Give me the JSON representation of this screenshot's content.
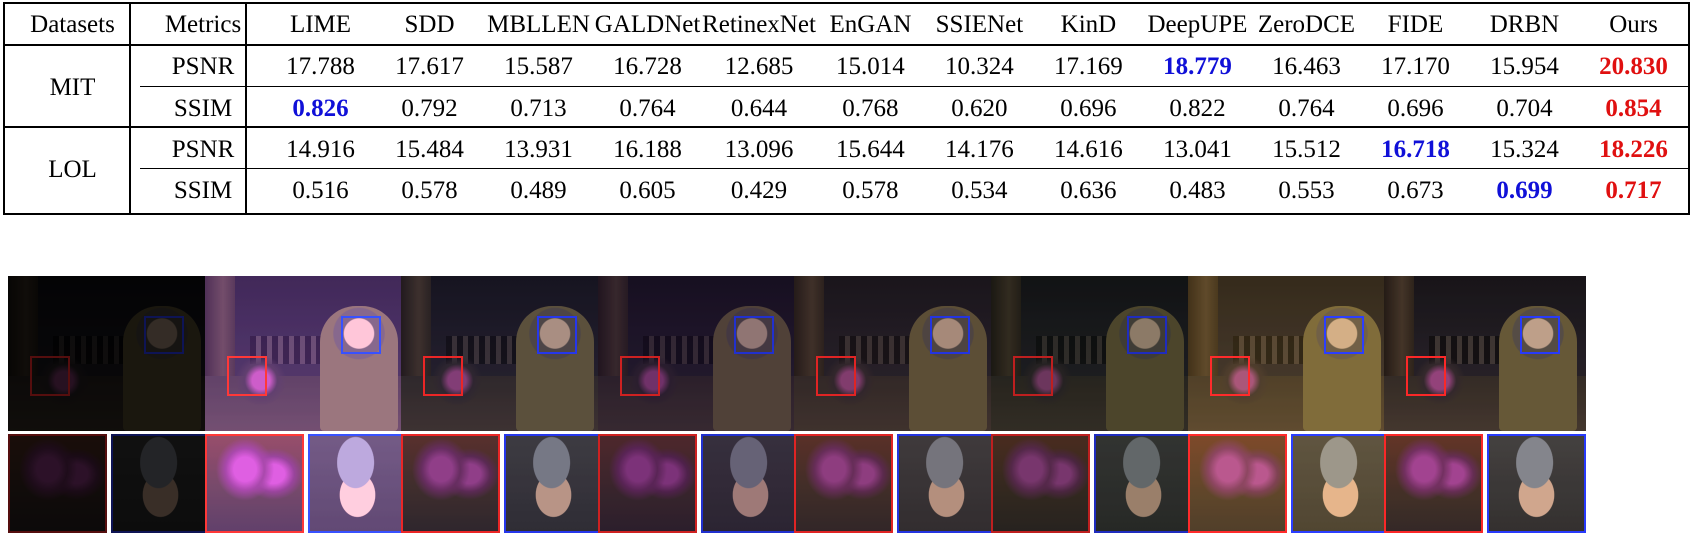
{
  "table": {
    "header": {
      "datasets": "Datasets",
      "metrics": "Metrics",
      "methods": [
        "LIME",
        "SDD",
        "MBLLEN",
        "GALDNet",
        "RetinexNet",
        "EnGAN",
        "SSIENet",
        "KinD",
        "DeepUPE",
        "ZeroDCE",
        "FIDE",
        "DRBN",
        "Ours"
      ]
    },
    "rows": [
      {
        "dataset": "MIT",
        "metric": "PSNR",
        "values": [
          "17.788",
          "17.617",
          "15.587",
          "16.728",
          "12.685",
          "15.014",
          "10.324",
          "17.169",
          "18.779",
          "16.463",
          "17.170",
          "15.954",
          "20.830"
        ],
        "best_index": 12,
        "second_index": 8
      },
      {
        "dataset": "MIT",
        "metric": "SSIM",
        "values": [
          "0.826",
          "0.792",
          "0.713",
          "0.764",
          "0.644",
          "0.768",
          "0.620",
          "0.696",
          "0.822",
          "0.764",
          "0.696",
          "0.704",
          "0.854"
        ],
        "best_index": 12,
        "second_index": 0
      },
      {
        "dataset": "LOL",
        "metric": "PSNR",
        "values": [
          "14.916",
          "15.484",
          "13.931",
          "16.188",
          "13.096",
          "15.644",
          "14.176",
          "14.616",
          "13.041",
          "15.512",
          "16.718",
          "15.324",
          "18.226"
        ],
        "best_index": 12,
        "second_index": 10
      },
      {
        "dataset": "LOL",
        "metric": "SSIM",
        "values": [
          "0.516",
          "0.578",
          "0.489",
          "0.605",
          "0.429",
          "0.578",
          "0.534",
          "0.636",
          "0.483",
          "0.553",
          "0.673",
          "0.699",
          "0.717"
        ],
        "best_index": 12,
        "second_index": 11
      }
    ],
    "datasets": [
      "MIT",
      "LOL"
    ],
    "colors": {
      "best": "#e01010",
      "second": "#1010d8",
      "border": "#000000"
    }
  },
  "comparison": {
    "panel_count": 8,
    "box_colors": {
      "red": "#e02424",
      "blue": "#2434e0"
    },
    "panels": [
      {
        "id": "input",
        "brightness": 0.38,
        "tint": "rgba(0,0,0,0.25)"
      },
      {
        "id": "result-2",
        "brightness": 1.55,
        "tint": "rgba(120,60,160,0.28)"
      },
      {
        "id": "result-3",
        "brightness": 1.05,
        "tint": "rgba(60,50,90,0.18)"
      },
      {
        "id": "result-4",
        "brightness": 0.92,
        "tint": "rgba(70,30,100,0.22)"
      },
      {
        "id": "result-5",
        "brightness": 1.0,
        "tint": "rgba(90,60,70,0.18)"
      },
      {
        "id": "result-6",
        "brightness": 0.85,
        "tint": "rgba(70,80,60,0.15)"
      },
      {
        "id": "result-7",
        "brightness": 1.2,
        "tint": "rgba(160,120,40,0.22)"
      },
      {
        "id": "result-8",
        "brightness": 1.12,
        "tint": "rgba(80,60,50,0.12)"
      }
    ]
  }
}
